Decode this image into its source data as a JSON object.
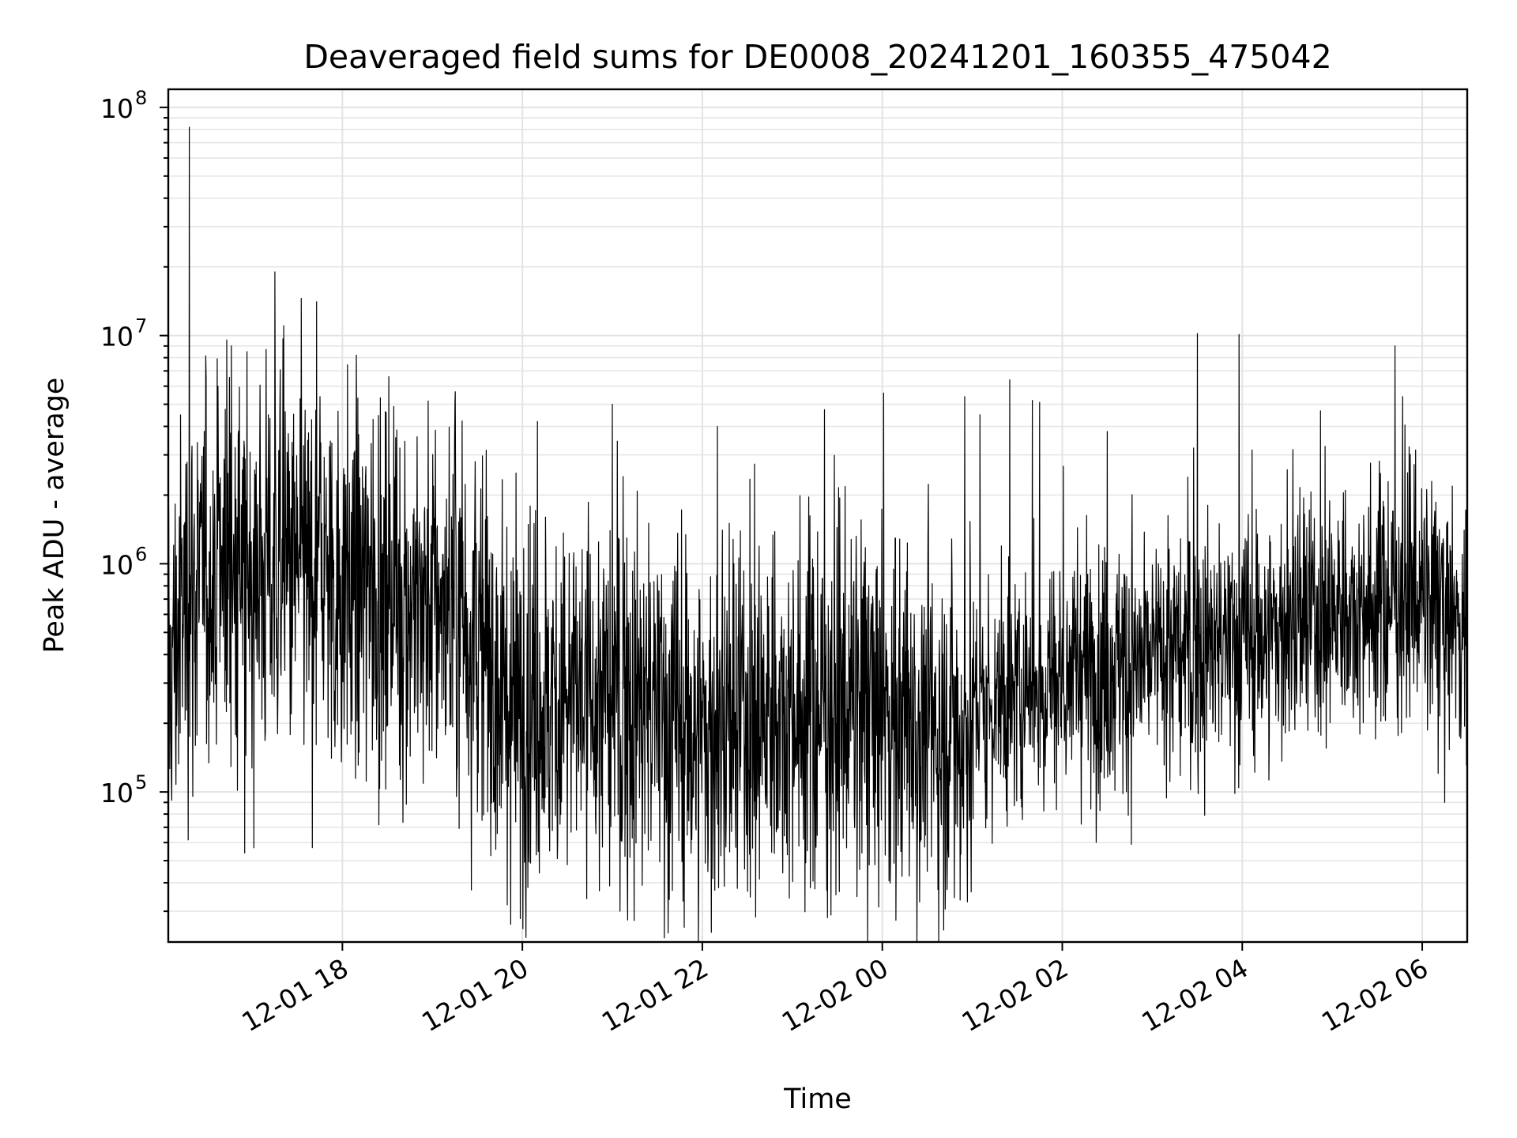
{
  "chart_data": {
    "type": "line",
    "title": "Deaveraged field sums for DE0008_20241201_160355_475042",
    "xlabel": "Time",
    "ylabel": "Peak ADU - average",
    "yscale": "log",
    "grid": true,
    "legend": "none",
    "series_color": "#000000",
    "x_start": "2024-12-01 16:03:55",
    "x_end": "2024-12-02 06:30:00",
    "xlim": [
      "2024-12-01 16:03:55",
      "2024-12-02 06:30:00"
    ],
    "ylim": [
      22000,
      120000000
    ],
    "x_ticks": [
      {
        "value": "2024-12-01 18:00",
        "label": "12-01 18"
      },
      {
        "value": "2024-12-01 20:00",
        "label": "12-01 20"
      },
      {
        "value": "2024-12-01 22:00",
        "label": "12-01 22"
      },
      {
        "value": "2024-12-02 00:00",
        "label": "12-02 00"
      },
      {
        "value": "2024-12-02 02:00",
        "label": "12-02 02"
      },
      {
        "value": "2024-12-02 04:00",
        "label": "12-02 04"
      },
      {
        "value": "2024-12-02 06:00",
        "label": "12-02 06"
      }
    ],
    "y_ticks": [
      {
        "value": 100000,
        "base": "10",
        "exp": "5"
      },
      {
        "value": 1000000,
        "base": "10",
        "exp": "6"
      },
      {
        "value": 10000000,
        "base": "10",
        "exp": "7"
      },
      {
        "value": 100000000,
        "base": "10",
        "exp": "8"
      }
    ],
    "trend": [
      [
        "2024-12-01 16:04",
        300000
      ],
      [
        "2024-12-01 16:15",
        700000
      ],
      [
        "2024-12-01 16:40",
        1000000
      ],
      [
        "2024-12-01 17:30",
        900000
      ],
      [
        "2024-12-01 18:30",
        750000
      ],
      [
        "2024-12-01 19:20",
        600000
      ],
      [
        "2024-12-01 19:50",
        250000
      ],
      [
        "2024-12-01 20:40",
        250000
      ],
      [
        "2024-12-01 21:30",
        230000
      ],
      [
        "2024-12-01 22:00",
        170000
      ],
      [
        "2024-12-01 23:00",
        240000
      ],
      [
        "2024-12-02 00:00",
        230000
      ],
      [
        "2024-12-02 00:40",
        180000
      ],
      [
        "2024-12-02 01:20",
        260000
      ],
      [
        "2024-12-02 02:00",
        330000
      ],
      [
        "2024-12-02 03:00",
        380000
      ],
      [
        "2024-12-02 04:00",
        450000
      ],
      [
        "2024-12-02 05:00",
        600000
      ],
      [
        "2024-12-02 05:50",
        750000
      ],
      [
        "2024-12-02 06:30",
        520000
      ]
    ],
    "spikes": [
      [
        "2024-12-01 16:18",
        82000000
      ],
      [
        "2024-12-01 16:37",
        6000000
      ],
      [
        "2024-12-01 17:45",
        5400000
      ],
      [
        "2024-12-01 19:15",
        5000000
      ],
      [
        "2024-12-01 20:10",
        4200000
      ],
      [
        "2024-12-01 21:00",
        5000000
      ],
      [
        "2024-12-01 22:10",
        4000000
      ],
      [
        "2024-12-02 00:01",
        5600000
      ],
      [
        "2024-12-02 00:55",
        5400000
      ],
      [
        "2024-12-02 01:05",
        4500000
      ],
      [
        "2024-12-02 01:25",
        6400000
      ],
      [
        "2024-12-02 01:40",
        5200000
      ],
      [
        "2024-12-02 01:45",
        5100000
      ],
      [
        "2024-12-02 02:30",
        3800000
      ],
      [
        "2024-12-02 03:30",
        10200000
      ],
      [
        "2024-12-02 03:58",
        10100000
      ],
      [
        "2024-12-02 05:47",
        5400000
      ]
    ],
    "dips": [
      [
        "2024-12-01 16:55",
        54000
      ],
      [
        "2024-12-01 17:40",
        57000
      ],
      [
        "2024-12-01 19:50",
        32000
      ],
      [
        "2024-12-01 20:30",
        48000
      ],
      [
        "2024-12-01 21:20",
        39000
      ],
      [
        "2024-12-01 21:40",
        37000
      ],
      [
        "2024-12-01 23:55",
        48000
      ],
      [
        "2024-12-02 03:35",
        79000
      ],
      [
        "2024-12-02 06:15",
        90000
      ]
    ]
  }
}
